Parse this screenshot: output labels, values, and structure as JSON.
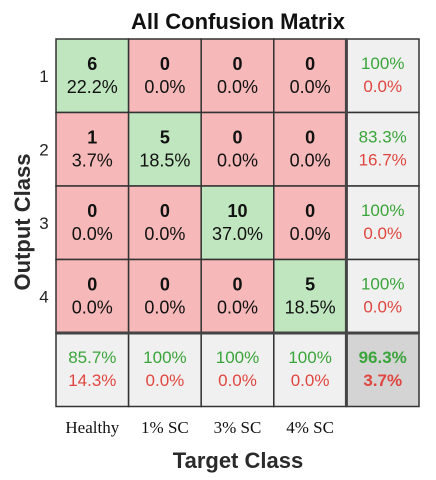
{
  "colors": {
    "correct": "#bfe6bf",
    "incorrect": "#f6b8b8",
    "summary": "#f0f0f0",
    "overall": "#d4d4d4",
    "good_text": "#3aa53a",
    "bad_text": "#e0463f",
    "border": "#333333"
  },
  "chart_data": {
    "type": "heatmap",
    "title": "All Confusion Matrix",
    "xlabel": "Target Class",
    "ylabel": "Output Class",
    "row_labels": [
      "1",
      "2",
      "3",
      "4"
    ],
    "col_labels": [
      "Healthy",
      "1% SC",
      "3% SC",
      "4% SC"
    ],
    "cells": [
      [
        {
          "count": "6",
          "pct": "22.2%"
        },
        {
          "count": "0",
          "pct": "0.0%"
        },
        {
          "count": "0",
          "pct": "0.0%"
        },
        {
          "count": "0",
          "pct": "0.0%"
        }
      ],
      [
        {
          "count": "1",
          "pct": "3.7%"
        },
        {
          "count": "5",
          "pct": "18.5%"
        },
        {
          "count": "0",
          "pct": "0.0%"
        },
        {
          "count": "0",
          "pct": "0.0%"
        }
      ],
      [
        {
          "count": "0",
          "pct": "0.0%"
        },
        {
          "count": "0",
          "pct": "0.0%"
        },
        {
          "count": "10",
          "pct": "37.0%"
        },
        {
          "count": "0",
          "pct": "0.0%"
        }
      ],
      [
        {
          "count": "0",
          "pct": "0.0%"
        },
        {
          "count": "0",
          "pct": "0.0%"
        },
        {
          "count": "0",
          "pct": "0.0%"
        },
        {
          "count": "5",
          "pct": "18.5%"
        }
      ]
    ],
    "row_summary": [
      {
        "correct": "100%",
        "incorrect": "0.0%"
      },
      {
        "correct": "83.3%",
        "incorrect": "16.7%"
      },
      {
        "correct": "100%",
        "incorrect": "0.0%"
      },
      {
        "correct": "100%",
        "incorrect": "0.0%"
      }
    ],
    "col_summary": [
      {
        "correct": "85.7%",
        "incorrect": "14.3%"
      },
      {
        "correct": "100%",
        "incorrect": "0.0%"
      },
      {
        "correct": "100%",
        "incorrect": "0.0%"
      },
      {
        "correct": "100%",
        "incorrect": "0.0%"
      }
    ],
    "overall": {
      "correct": "96.3%",
      "incorrect": "3.7%"
    }
  }
}
